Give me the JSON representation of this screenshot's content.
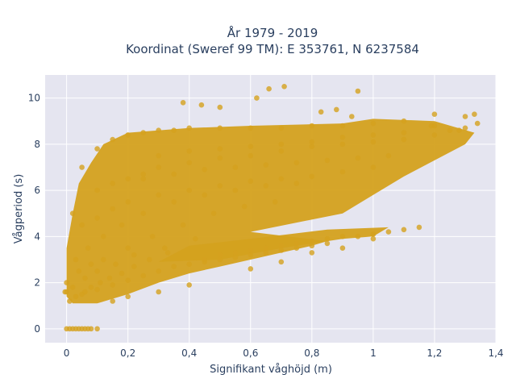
{
  "chart_data": {
    "type": "scatter",
    "title_line1": "År 1979 - 2019",
    "title_line2": "Koordinat (Sweref 99 TM): E 353761, N 6237584",
    "xlabel": "Signifikant våghöjd (m)",
    "ylabel": "Vågperiod (s)",
    "xlim": [
      -0.07,
      1.4
    ],
    "ylim": [
      -0.6,
      11.0
    ],
    "x_ticks": [
      0,
      0.2,
      0.4,
      0.6,
      0.8,
      1.0,
      1.2,
      1.4
    ],
    "x_tick_labels": [
      "0",
      "0,2",
      "0,4",
      "0,6",
      "0,8",
      "1",
      "1,2",
      "1,4"
    ],
    "y_ticks": [
      0,
      2,
      4,
      6,
      8,
      10
    ],
    "y_tick_labels": [
      "0",
      "2",
      "4",
      "6",
      "8",
      "10"
    ],
    "grid": true,
    "legend": "none",
    "colors": {
      "marker": "#d4a11e",
      "plot_background": "#e5e5f0",
      "grid": "#ffffff",
      "text": "#2a3f5f"
    },
    "series": [
      {
        "x": [
          0.0,
          0.01,
          0.02,
          0.03,
          0.04,
          0.05,
          0.06,
          0.07,
          0.08,
          0.1,
          0.0,
          0.05,
          0.1,
          0.15,
          0.2,
          0.25,
          0.3,
          0.35,
          0.4,
          0.45,
          0.5,
          0.55,
          0.6,
          0.65,
          0.7,
          0.75,
          0.8,
          0.85,
          0.02,
          0.05,
          0.1,
          0.15,
          0.2,
          0.25,
          0.3,
          0.35,
          0.4,
          0.5,
          0.6,
          0.7,
          0.8,
          0.9,
          1.0,
          1.1,
          1.2,
          1.3,
          0.1,
          0.15,
          0.2,
          0.25,
          0.3,
          0.4,
          0.5,
          0.6,
          0.7,
          0.8,
          0.9,
          1.0,
          1.1,
          1.2,
          1.25,
          1.3,
          1.34,
          0.05,
          0.1,
          0.15,
          0.2,
          0.3,
          0.4,
          0.5,
          0.6,
          0.7,
          0.8,
          0.9,
          1.0,
          0.03,
          0.07,
          0.12,
          0.18,
          0.25,
          0.35,
          0.45,
          0.55,
          0.65,
          0.75,
          0.04,
          0.08,
          0.12,
          0.2,
          0.28,
          0.38,
          0.48,
          0.58,
          0.68,
          0.02,
          0.06,
          0.1,
          0.16,
          0.22,
          0.32,
          0.42,
          0.45,
          0.5,
          0.55,
          0.6,
          0.65,
          0.7,
          0.75,
          0.8,
          0.85,
          0.9,
          0.95,
          1.0,
          1.05,
          1.1,
          1.15,
          0.3,
          0.4,
          0.5,
          0.6,
          0.7,
          0.8,
          0.9,
          1.0,
          1.1,
          1.2,
          0.25,
          0.35,
          0.45,
          0.55,
          0.65,
          0.75,
          0.85,
          0.95,
          1.05,
          0.66,
          0.71,
          0.5,
          0.95,
          0.38,
          0.44,
          0.62,
          0.83,
          1.19,
          1.28,
          1.33,
          0.88,
          0.93,
          -0.005,
          0.0,
          0.15,
          0.2,
          0.3,
          0.4,
          0.6,
          0.7,
          0.8,
          0.9,
          1.0,
          0.01,
          0.03,
          0.06,
          0.08,
          0.11,
          0.14,
          0.18,
          0.22,
          0.27,
          0.33
        ],
        "y": [
          0.0,
          0.0,
          0.0,
          0.0,
          0.0,
          0.0,
          0.0,
          0.0,
          0.0,
          0.0,
          1.6,
          1.5,
          1.7,
          1.9,
          2.1,
          2.3,
          2.5,
          2.7,
          2.8,
          2.9,
          3.0,
          3.1,
          3.2,
          3.3,
          3.4,
          3.5,
          3.6,
          3.7,
          5.0,
          7.0,
          7.8,
          8.2,
          8.4,
          8.5,
          8.6,
          8.6,
          8.7,
          8.7,
          8.7,
          8.7,
          8.8,
          8.8,
          8.9,
          9.0,
          9.3,
          9.2,
          6.0,
          6.3,
          6.5,
          6.7,
          7.0,
          7.2,
          7.4,
          7.5,
          7.7,
          7.9,
          8.0,
          8.1,
          8.2,
          8.4,
          8.6,
          8.7,
          8.9,
          4.5,
          4.8,
          5.2,
          5.5,
          5.8,
          6.0,
          6.2,
          6.4,
          6.5,
          6.6,
          6.8,
          7.0,
          3.0,
          3.5,
          4.0,
          4.5,
          5.0,
          5.5,
          5.8,
          6.0,
          6.2,
          6.3,
          2.5,
          2.8,
          3.0,
          3.5,
          4.0,
          4.5,
          5.0,
          5.3,
          5.5,
          1.8,
          2.2,
          2.5,
          2.8,
          3.2,
          3.5,
          3.9,
          3.0,
          3.2,
          3.3,
          3.4,
          3.5,
          3.6,
          3.7,
          3.8,
          3.9,
          4.0,
          4.0,
          4.1,
          4.2,
          4.3,
          4.4,
          7.5,
          7.7,
          7.8,
          7.9,
          8.0,
          8.1,
          8.3,
          8.4,
          8.5,
          8.8,
          6.5,
          6.7,
          6.9,
          7.0,
          7.1,
          7.2,
          7.3,
          7.4,
          7.5,
          10.4,
          10.5,
          9.6,
          10.3,
          9.8,
          9.7,
          10.0,
          9.4,
          8.8,
          8.6,
          9.3,
          9.5,
          9.2,
          1.6,
          2.0,
          1.2,
          1.4,
          1.6,
          1.9,
          2.6,
          2.9,
          3.3,
          3.5,
          3.9,
          1.2,
          1.4,
          1.6,
          1.8,
          2.0,
          2.2,
          2.4,
          2.7,
          3.0,
          3.3
        ]
      }
    ]
  }
}
